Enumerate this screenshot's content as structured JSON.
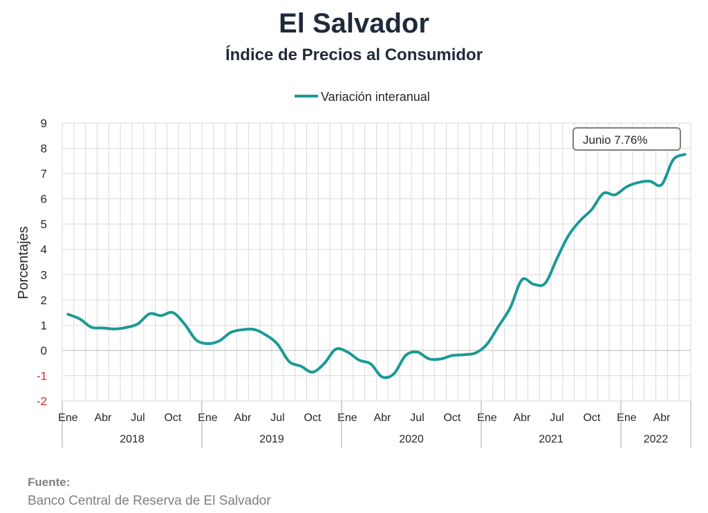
{
  "header": {
    "title": "El Salvador",
    "subtitle": "Índice de Precios al Consumidor"
  },
  "footer": {
    "source_label": "Fuente:",
    "source_text": "Banco Central de Reserva de El Salvador"
  },
  "colors": {
    "series": "#1a9a96",
    "grid": "#d9d9d9",
    "axis_text": "#262626",
    "negative_tick": "#e02020"
  },
  "chart_data": {
    "type": "line",
    "title": "Índice de Precios al Consumidor",
    "ylabel": "Porcentajes",
    "xlabel": "",
    "ylim": [
      -2,
      9
    ],
    "yticks": [
      "9",
      "8",
      "7",
      "6",
      "5",
      "4",
      "3",
      "2",
      "1",
      "0",
      "-1",
      "-2"
    ],
    "grid": true,
    "legend_position": "top-center",
    "years": [
      "2018",
      "2019",
      "2020",
      "2021",
      "2022"
    ],
    "month_labels": [
      "Ene",
      "",
      "",
      "Abr",
      "",
      "",
      "Jul",
      "",
      "",
      "Oct",
      "",
      "",
      "Ene",
      "",
      "",
      "Abr",
      "",
      "",
      "Jul",
      "",
      "",
      "Oct",
      "",
      "",
      "Ene",
      "",
      "",
      "Abr",
      "",
      "",
      "Jul",
      "",
      "",
      "Oct",
      "",
      "",
      "Ene",
      "",
      "",
      "Abr",
      "",
      "",
      "Jul",
      "",
      "",
      "Oct",
      "",
      "",
      "Ene",
      "",
      "",
      "Abr",
      "",
      ""
    ],
    "series": [
      {
        "name": "Variación interanual",
        "values": [
          1.43,
          1.25,
          0.92,
          0.89,
          0.85,
          0.91,
          1.05,
          1.45,
          1.38,
          1.5,
          1.05,
          0.42,
          0.27,
          0.38,
          0.72,
          0.82,
          0.83,
          0.61,
          0.25,
          -0.44,
          -0.62,
          -0.86,
          -0.52,
          0.05,
          -0.06,
          -0.38,
          -0.53,
          -1.05,
          -0.92,
          -0.2,
          -0.06,
          -0.33,
          -0.34,
          -0.2,
          -0.17,
          -0.1,
          0.25,
          0.97,
          1.7,
          2.8,
          2.62,
          2.66,
          3.63,
          4.55,
          5.14,
          5.58,
          6.22,
          6.16,
          6.48,
          6.65,
          6.7,
          6.56,
          7.55,
          7.76
        ]
      }
    ],
    "annotation": "Junio 7.76%"
  }
}
